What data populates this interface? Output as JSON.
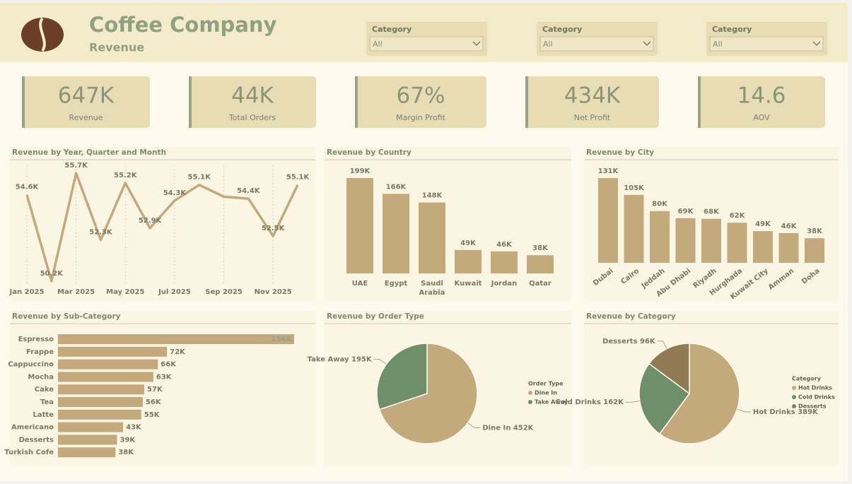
{
  "header": {
    "title": "Coffee Company",
    "subtitle": "Revenue"
  },
  "filters": [
    {
      "label": "Category",
      "value": "All"
    },
    {
      "label": "Category",
      "value": "All"
    },
    {
      "label": "Category",
      "value": "All"
    }
  ],
  "kpis": [
    {
      "value": "647K",
      "label": "Revenue"
    },
    {
      "value": "44K",
      "label": "Total Orders"
    },
    {
      "value": "67%",
      "label": "Margin Profit"
    },
    {
      "value": "434K",
      "label": "Net Profit"
    },
    {
      "value": "14.6",
      "label": "AOV"
    }
  ],
  "chart_data": [
    {
      "type": "line",
      "title": "Revenue by Year, Quarter and Month",
      "categories": [
        "Jan 2025",
        null,
        "Mar 2025",
        null,
        "May 2025",
        null,
        "Jul 2025",
        null,
        "Sep 2025",
        null,
        "Nov 2025",
        null
      ],
      "values": [
        54600,
        50200,
        55700,
        52300,
        55200,
        52900,
        54300,
        55100,
        54500,
        54400,
        52500,
        55100
      ],
      "value_labels": [
        "54.6K",
        "50.2K",
        "55.7K",
        "52.3K",
        "55.2K",
        "52.9K",
        "54.3K",
        "55.1K",
        null,
        "54.4K",
        "52.5K",
        "55.1K"
      ],
      "color": "#c4a97c"
    },
    {
      "type": "bar",
      "title": "Revenue by Country",
      "categories": [
        "UAE",
        "Egypt",
        "Saudi Arabia",
        "Kuwait",
        "Jordan",
        "Qatar"
      ],
      "values": [
        199000,
        166000,
        148000,
        49000,
        46000,
        38000
      ],
      "value_labels": [
        "199K",
        "166K",
        "148K",
        "49K",
        "46K",
        "38K"
      ],
      "color": "#c4a97c"
    },
    {
      "type": "bar",
      "title": "Revenue by City",
      "categories": [
        "Dubai",
        "Cairo",
        "Jeddah",
        "Abu Dhabi",
        "Riyadh",
        "Hurghada",
        "Kuwait City",
        "Amman",
        "Doha"
      ],
      "values": [
        131000,
        105000,
        80000,
        69000,
        68000,
        62000,
        49000,
        46000,
        38000
      ],
      "value_labels": [
        "131K",
        "105K",
        "80K",
        "69K",
        "68K",
        "62K",
        "49K",
        "46K",
        "38K"
      ],
      "color": "#c4a97c"
    },
    {
      "type": "hbar",
      "title": "Revenue by Sub-Category",
      "categories": [
        "Espresso",
        "Frappe",
        "Cappuccino",
        "Mocha",
        "Cake",
        "Tea",
        "Latte",
        "Americano",
        "Desserts",
        "Turkish Cofe"
      ],
      "values": [
        156000,
        72000,
        66000,
        63000,
        57000,
        56000,
        55000,
        43000,
        39000,
        38000
      ],
      "value_labels": [
        "156K",
        "72K",
        "66K",
        "63K",
        "57K",
        "56K",
        "55K",
        "43K",
        "39K",
        "38K"
      ],
      "color": "#c4a97c"
    },
    {
      "type": "pie",
      "title": "Revenue by Order Type",
      "legend_title": "Order Type",
      "categories": [
        "Dine In",
        "Take Away"
      ],
      "values": [
        452000,
        195000
      ],
      "value_labels": [
        "452K",
        "195K"
      ],
      "colors": [
        "#c4a97c",
        "#6f8f6a"
      ]
    },
    {
      "type": "pie",
      "title": "Revenue by Category",
      "legend_title": "Category",
      "categories": [
        "Hot Drinks",
        "Cold Drinks",
        "Desserts"
      ],
      "values": [
        389000,
        162000,
        96000
      ],
      "value_labels": [
        "389K",
        "162K",
        "96K"
      ],
      "colors": [
        "#c4a97c",
        "#6f8f6a",
        "#8f7a55"
      ]
    }
  ]
}
